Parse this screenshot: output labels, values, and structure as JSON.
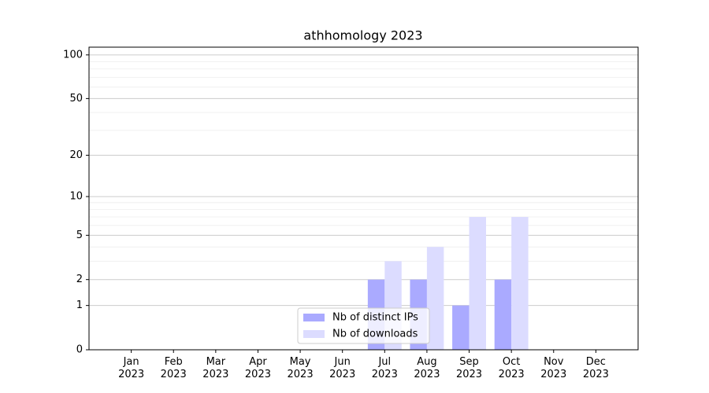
{
  "chart_data": {
    "type": "bar",
    "title": "athhomology 2023",
    "categories": [
      "Jan\n2023",
      "Feb\n2023",
      "Mar\n2023",
      "Apr\n2023",
      "May\n2023",
      "Jun\n2023",
      "Jul\n2023",
      "Aug\n2023",
      "Sep\n2023",
      "Oct\n2023",
      "Nov\n2023",
      "Dec\n2023"
    ],
    "series": [
      {
        "name": "Nb of distinct IPs",
        "color": "#aaaaff",
        "values": [
          0,
          0,
          0,
          0,
          0,
          0,
          2,
          2,
          1,
          2,
          0,
          0
        ]
      },
      {
        "name": "Nb of downloads",
        "color": "#dcdcff",
        "values": [
          0,
          0,
          0,
          0,
          0,
          0,
          3,
          4,
          7,
          7,
          0,
          0
        ]
      }
    ],
    "yscale": "log1p",
    "ylim": [
      0,
      113
    ],
    "yticks": [
      0,
      1,
      2,
      5,
      10,
      20,
      50,
      100
    ],
    "minor_yticks": [
      3,
      4,
      6,
      7,
      8,
      9,
      30,
      40,
      60,
      70,
      80,
      90
    ],
    "grid": true,
    "legend": "lower center"
  }
}
